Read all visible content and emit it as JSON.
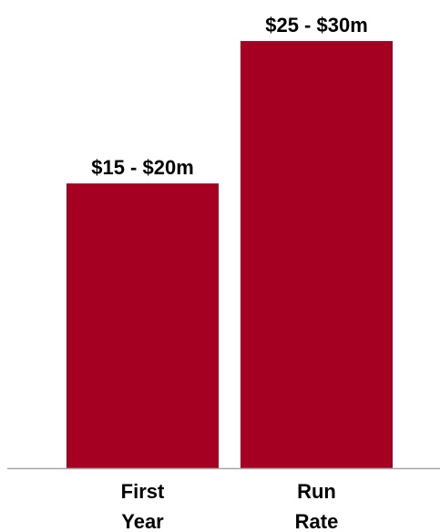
{
  "chart_data": {
    "type": "bar",
    "categories": [
      [
        "First",
        "Year"
      ],
      [
        "Run",
        "Rate"
      ]
    ],
    "series": [
      {
        "values": [
          17.5,
          27.5
        ],
        "ranges": [
          [
            15,
            20
          ],
          [
            25,
            30
          ]
        ],
        "data_labels": [
          "$15 - $20m",
          "$25 - $30m"
        ]
      }
    ],
    "title": "",
    "xlabel": "",
    "ylabel": "",
    "ylim": [
      0,
      30
    ],
    "grid": false,
    "legend": "none",
    "bar_color": "#a50021",
    "axis_color": "#a6a6a6"
  }
}
